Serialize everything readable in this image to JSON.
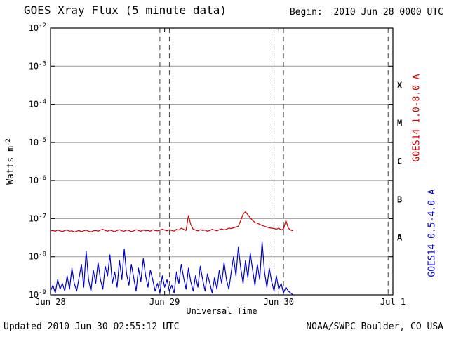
{
  "header": {
    "begin_label": "Begin:  2010 Jun 28 0000 UTC"
  },
  "footer": {
    "updated": "Updated 2010 Jun 30 02:55:12 UTC",
    "source": "NOAA/SWPC Boulder, CO USA"
  },
  "axes": {
    "ylabel_base": "Watts m",
    "ylabel_exp": "-2",
    "xlabel": "Universal Time"
  },
  "chart_data": {
    "type": "line",
    "title": "GOES Xray Flux (5 minute data)",
    "xlabel": "Universal Time",
    "ylabel": "Watts m^-2",
    "x_range_hours": [
      0,
      72
    ],
    "y_log_range": [
      -9,
      -2
    ],
    "y_tick_base": "10",
    "y_tick_exponents": [
      -2,
      -3,
      -4,
      -5,
      -6,
      -7,
      -8,
      -9
    ],
    "x_ticks_hours": [
      0,
      24,
      48,
      72
    ],
    "x_tick_labels": [
      "Jun 28",
      "Jun 29",
      "Jun 30",
      "Jul 1"
    ],
    "h_gridline_exponents": [
      -3,
      -4,
      -5,
      -6,
      -7,
      -8
    ],
    "v_gridline_hours": [
      23,
      25,
      47,
      49,
      71
    ],
    "flare_class_labels": [
      {
        "label": "X",
        "log_center": -3.5
      },
      {
        "label": "M",
        "log_center": -4.5
      },
      {
        "label": "C",
        "log_center": -5.5
      },
      {
        "label": "B",
        "log_center": -6.5
      },
      {
        "label": "A",
        "log_center": -7.5
      }
    ],
    "colors": {
      "long": "#cc0000",
      "short": "#0000cc",
      "grid": "#999999",
      "dashed_grid": "#444444",
      "frame": "#000000"
    },
    "series": [
      {
        "name": "GOES14 1.0-8.0 A",
        "band": "1.0-8.0 A",
        "color_key": "long",
        "t_start_hours": 0,
        "t_step_hours": 0.5,
        "log10_flux": [
          -7.32,
          -7.31,
          -7.33,
          -7.3,
          -7.32,
          -7.34,
          -7.31,
          -7.3,
          -7.33,
          -7.32,
          -7.35,
          -7.33,
          -7.31,
          -7.34,
          -7.32,
          -7.3,
          -7.33,
          -7.35,
          -7.32,
          -7.31,
          -7.33,
          -7.3,
          -7.28,
          -7.31,
          -7.33,
          -7.3,
          -7.32,
          -7.34,
          -7.31,
          -7.29,
          -7.32,
          -7.33,
          -7.3,
          -7.31,
          -7.34,
          -7.32,
          -7.29,
          -7.31,
          -7.33,
          -7.3,
          -7.32,
          -7.31,
          -7.33,
          -7.29,
          -7.31,
          -7.32,
          -7.3,
          -7.28,
          -7.3,
          -7.32,
          -7.29,
          -7.31,
          -7.33,
          -7.28,
          -7.3,
          -7.25,
          -7.28,
          -7.31,
          -6.92,
          -7.15,
          -7.28,
          -7.3,
          -7.32,
          -7.29,
          -7.31,
          -7.3,
          -7.33,
          -7.31,
          -7.28,
          -7.3,
          -7.32,
          -7.29,
          -7.27,
          -7.3,
          -7.28,
          -7.25,
          -7.26,
          -7.24,
          -7.22,
          -7.2,
          -7.05,
          -6.88,
          -6.82,
          -6.9,
          -6.98,
          -7.05,
          -7.1,
          -7.12,
          -7.15,
          -7.18,
          -7.2,
          -7.22,
          -7.24,
          -7.25,
          -7.26,
          -7.28,
          -7.25,
          -7.3,
          -7.27,
          -7.05,
          -7.25,
          -7.3,
          -7.32
        ]
      },
      {
        "name": "GOES14 0.5-4.0 A",
        "band": "0.5-4.0 A",
        "color_key": "short",
        "t_start_hours": 0,
        "t_step_hours": 0.5,
        "log10_flux": [
          -8.9,
          -8.75,
          -8.95,
          -8.6,
          -8.85,
          -8.7,
          -8.9,
          -8.5,
          -8.85,
          -8.3,
          -8.7,
          -8.9,
          -8.55,
          -8.2,
          -8.8,
          -7.85,
          -8.6,
          -8.9,
          -8.35,
          -8.7,
          -8.15,
          -8.6,
          -8.85,
          -8.25,
          -8.5,
          -7.95,
          -8.7,
          -8.4,
          -8.8,
          -8.1,
          -8.6,
          -7.8,
          -8.45,
          -8.75,
          -8.2,
          -8.55,
          -8.9,
          -8.3,
          -8.65,
          -8.05,
          -8.5,
          -8.8,
          -8.35,
          -8.6,
          -8.9,
          -8.7,
          -8.95,
          -8.5,
          -8.8,
          -8.6,
          -8.9,
          -8.75,
          -8.95,
          -8.4,
          -8.7,
          -8.2,
          -8.55,
          -8.85,
          -8.3,
          -8.65,
          -8.9,
          -8.5,
          -8.8,
          -8.25,
          -8.6,
          -8.9,
          -8.45,
          -8.7,
          -8.95,
          -8.55,
          -8.85,
          -8.35,
          -8.7,
          -8.15,
          -8.6,
          -8.85,
          -8.4,
          -8.0,
          -8.5,
          -7.75,
          -8.3,
          -8.7,
          -8.1,
          -8.55,
          -7.9,
          -8.35,
          -8.75,
          -8.2,
          -8.6,
          -7.6,
          -8.4,
          -8.8,
          -8.3,
          -8.65,
          -8.9,
          -8.5,
          -8.85,
          -8.7,
          -8.95,
          -8.8,
          -8.9,
          -8.95,
          -9.0
        ]
      }
    ]
  }
}
